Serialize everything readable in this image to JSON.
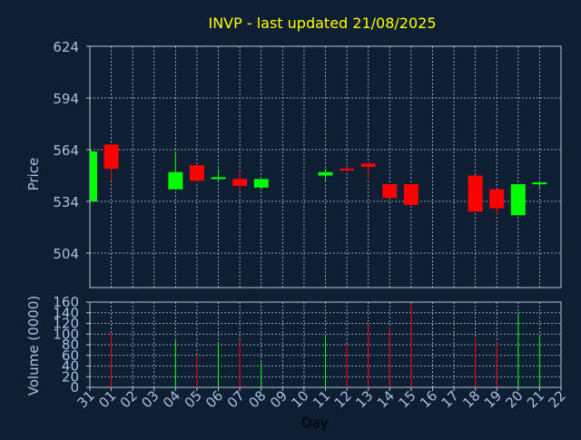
{
  "chart_data": [
    {
      "type": "candlestick",
      "title": "INVP - last updated 21/08/2025",
      "ylabel": "Price",
      "ylim": [
        504,
        624
      ],
      "yticks": [
        "624",
        "594",
        "564",
        "534",
        "504"
      ],
      "grid": true,
      "candles": [
        {
          "day": "31",
          "open": 534,
          "high": 564,
          "low": 534,
          "close": 563
        },
        {
          "day": "01",
          "open": 567,
          "high": 567,
          "low": 546,
          "close": 553
        },
        {
          "day": "04",
          "open": 541,
          "high": 563,
          "low": 541,
          "close": 551
        },
        {
          "day": "05",
          "open": 555,
          "high": 555,
          "low": 545,
          "close": 546
        },
        {
          "day": "06",
          "open": 547,
          "high": 553,
          "low": 546,
          "close": 548
        },
        {
          "day": "07",
          "open": 547,
          "high": 551,
          "low": 540,
          "close": 543
        },
        {
          "day": "08",
          "open": 542,
          "high": 547,
          "low": 541,
          "close": 547
        },
        {
          "day": "11",
          "open": 549,
          "high": 553,
          "low": 546,
          "close": 551
        },
        {
          "day": "12",
          "open": 553,
          "high": 554,
          "low": 551,
          "close": 552
        },
        {
          "day": "13",
          "open": 556,
          "high": 557,
          "low": 547,
          "close": 554
        },
        {
          "day": "14",
          "open": 544,
          "high": 544,
          "low": 535,
          "close": 536
        },
        {
          "day": "15",
          "open": 544,
          "high": 544,
          "low": 531,
          "close": 532
        },
        {
          "day": "18",
          "open": 549,
          "high": 549,
          "low": 528,
          "close": 528
        },
        {
          "day": "19",
          "open": 541,
          "high": 541,
          "low": 526,
          "close": 530
        },
        {
          "day": "20",
          "open": 526,
          "high": 544,
          "low": 526,
          "close": 544
        },
        {
          "day": "21",
          "open": 544,
          "high": 545,
          "low": 542,
          "close": 545
        }
      ]
    },
    {
      "type": "bar",
      "ylabel": "Volume (0000)",
      "xlabel": "Day",
      "ylim": [
        0,
        160
      ],
      "yticks": [
        "160",
        "140",
        "120",
        "100",
        "80",
        "60",
        "40",
        "20",
        "0"
      ],
      "categories": [
        "31",
        "01",
        "02",
        "03",
        "04",
        "05",
        "06",
        "07",
        "08",
        "09",
        "10",
        "11",
        "12",
        "13",
        "14",
        "15",
        "16",
        "17",
        "18",
        "19",
        "20",
        "21",
        "22"
      ],
      "values": [
        0,
        102,
        0,
        0,
        88,
        58,
        82,
        88,
        47,
        0,
        0,
        95,
        82,
        118,
        112,
        155,
        0,
        0,
        92,
        85,
        138,
        97,
        0
      ],
      "directions": [
        "",
        "down",
        "",
        "",
        "up",
        "down",
        "up",
        "down",
        "up",
        "",
        "",
        "up",
        "down",
        "down",
        "down",
        "down",
        "",
        "",
        "down",
        "down",
        "up",
        "up",
        ""
      ]
    }
  ],
  "colors": {
    "background": "#0f1f33",
    "grid": "#b8c4d4",
    "axis_text": "#a8c0e0",
    "title": "#ffff00",
    "up": "#00ff00",
    "down": "#ff0000",
    "xlabel": "#000000"
  }
}
